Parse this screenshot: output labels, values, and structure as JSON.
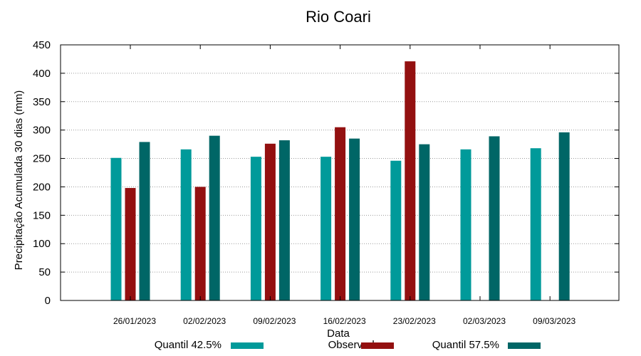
{
  "chart_data": {
    "type": "bar",
    "title": "Rio Coari",
    "xlabel": "Data",
    "ylabel": "Precipitação Acumulada 30 dias (mm)",
    "ylim": [
      0,
      450
    ],
    "yticks": [
      0,
      50,
      100,
      150,
      200,
      250,
      300,
      350,
      400,
      450
    ],
    "grid": "y-dotted",
    "legend_position": "bottom",
    "categories": [
      "26/01/2023",
      "02/02/2023",
      "09/02/2023",
      "16/02/2023",
      "23/02/2023",
      "02/03/2023",
      "09/03/2023"
    ],
    "series": [
      {
        "name": "Quantil 42.5%",
        "color": "#009a9a",
        "values": [
          251,
          266,
          253,
          253,
          246,
          266,
          268
        ]
      },
      {
        "name": "Observado",
        "color": "#931010",
        "values": [
          198,
          200,
          276,
          305,
          421,
          null,
          null
        ]
      },
      {
        "name": "Quantil 57.5%",
        "color": "#006666",
        "values": [
          279,
          290,
          282,
          285,
          275,
          289,
          296
        ]
      }
    ]
  }
}
